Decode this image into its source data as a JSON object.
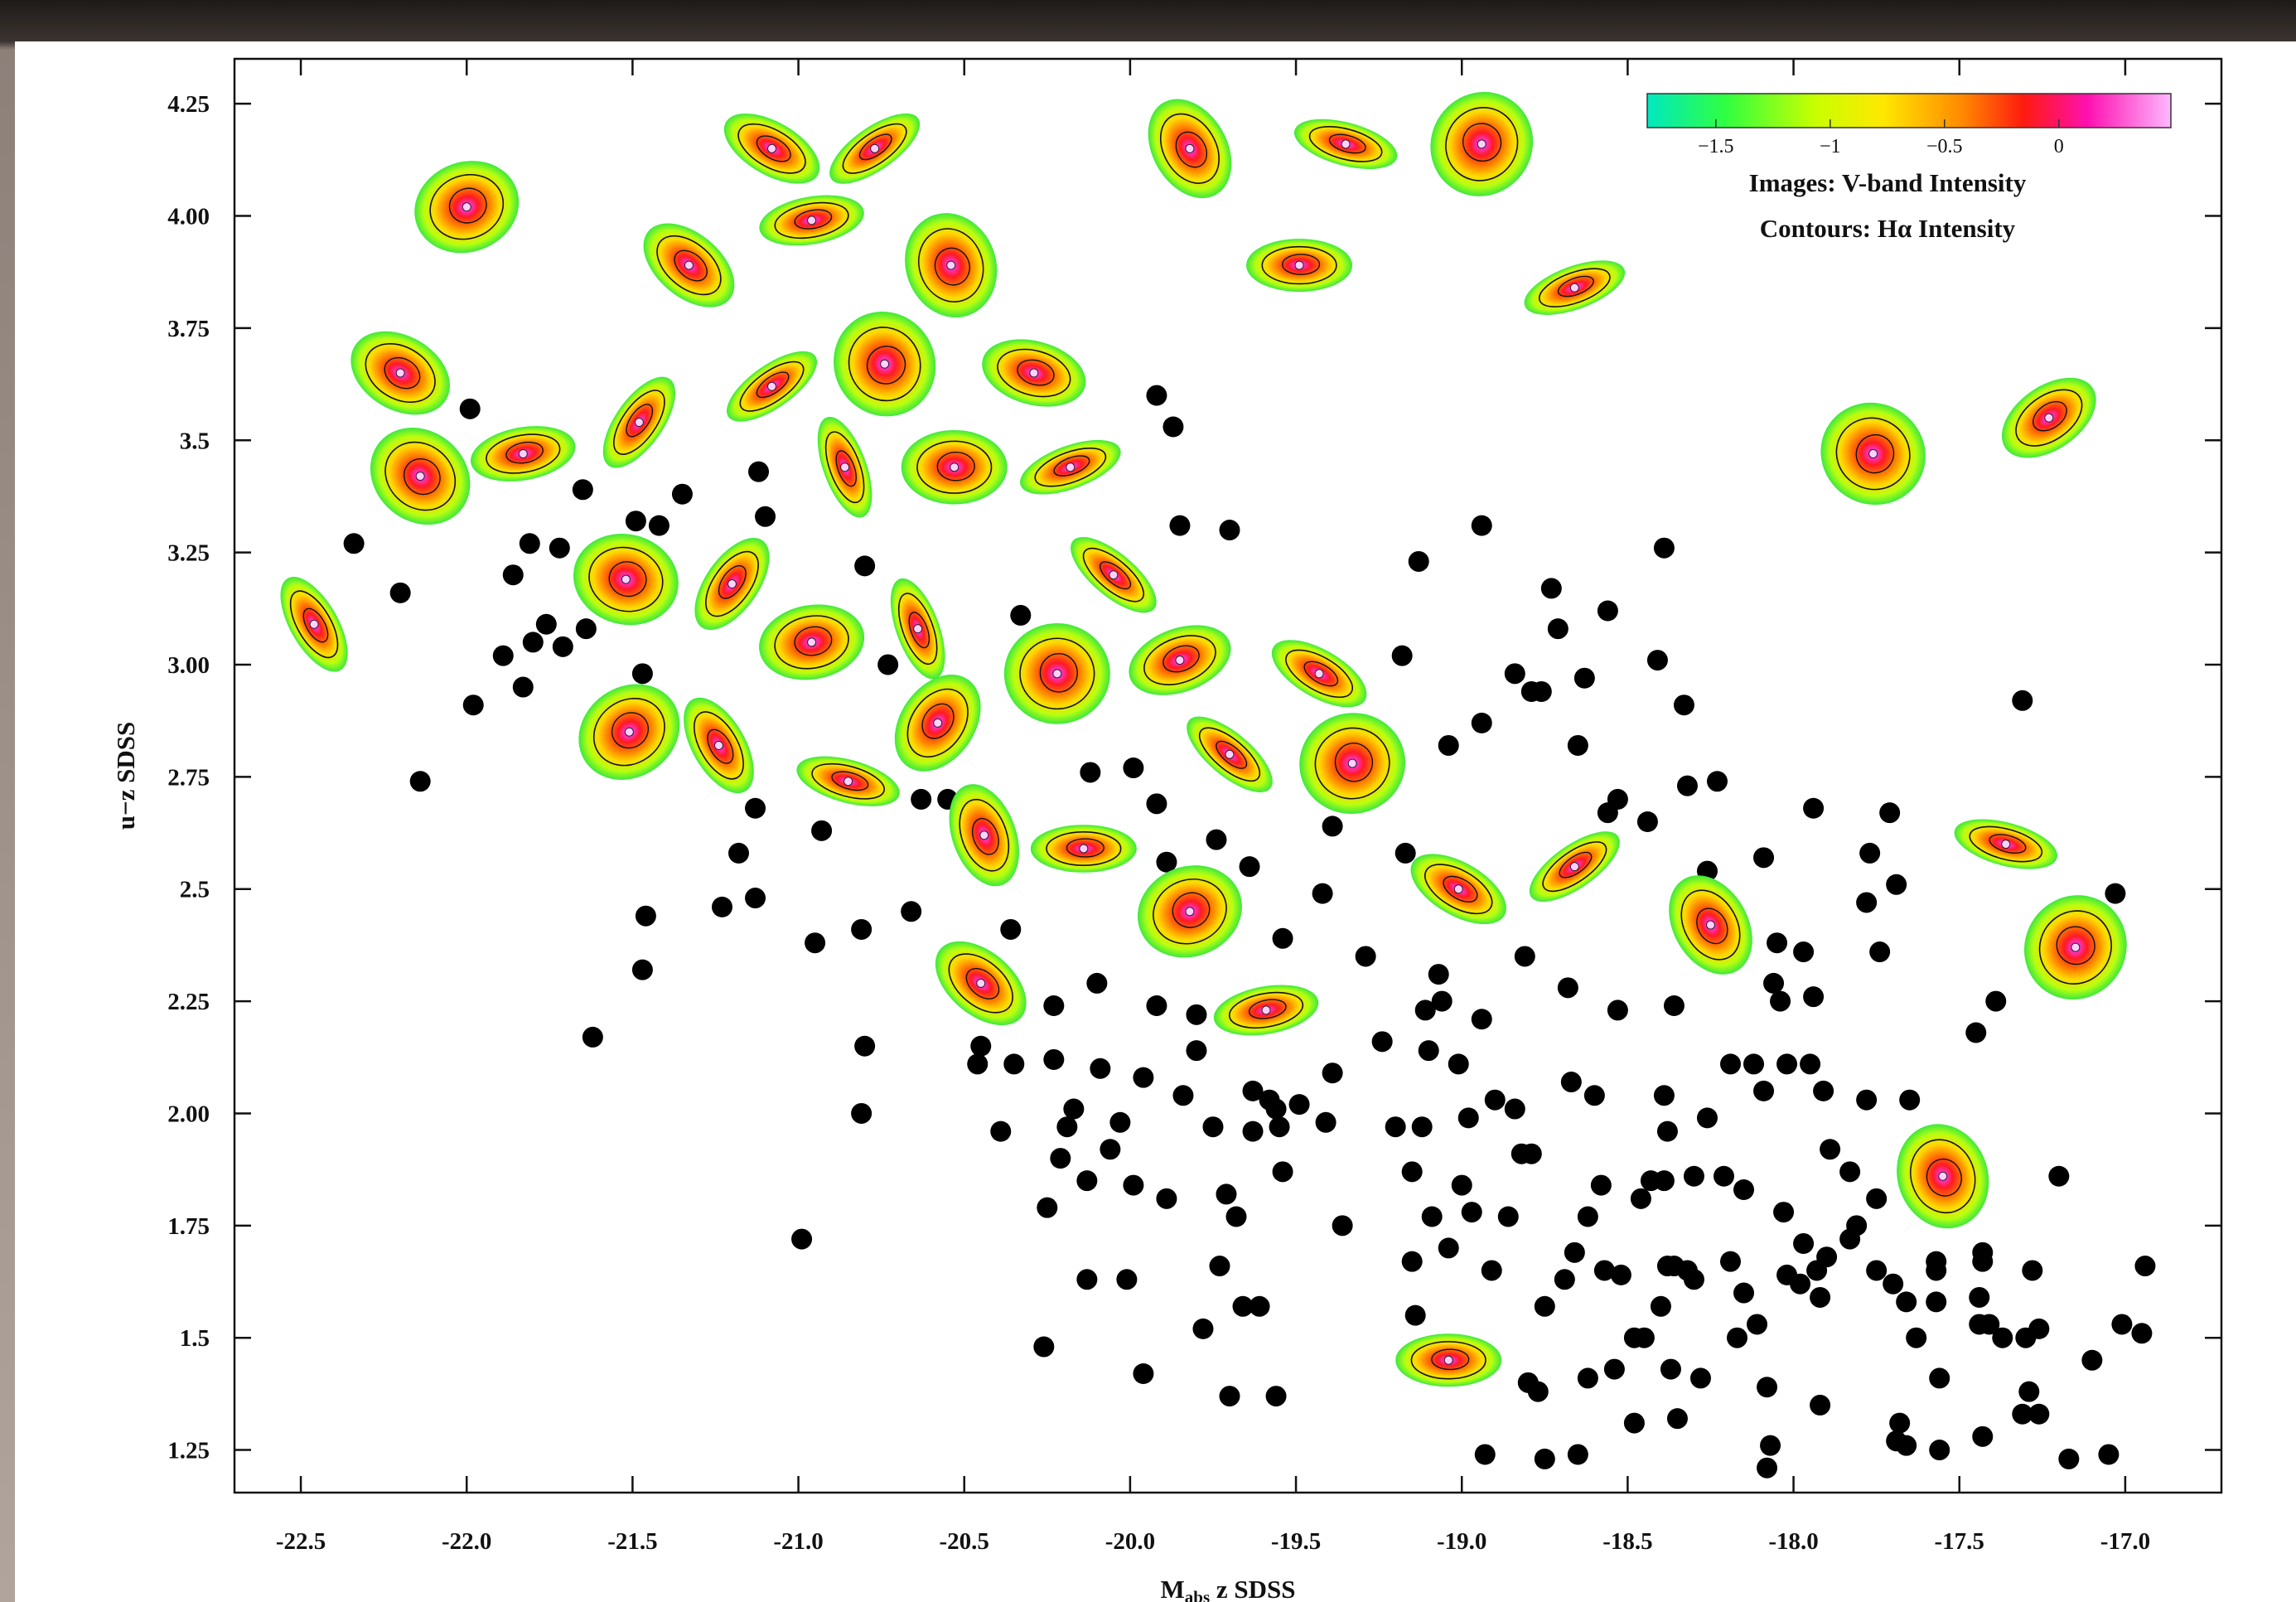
{
  "chart_data": {
    "type": "scatter",
    "xlabel": [
      "M",
      "abs",
      " z SDSS"
    ],
    "ylabel": "u−z SDSS",
    "annotations": [
      "Images: V-band Intensity",
      "Contours: Hα Intensity"
    ],
    "xlim": [
      -22.7,
      -16.71
    ],
    "ylim": [
      1.155,
      4.35
    ],
    "xticks": [
      -22.5,
      {
        "value": -22.0,
        "label": "-22.0"
      },
      -21.5,
      {
        "value": -21.0,
        "label": "-21.0"
      },
      -20.5,
      {
        "value": -20.0,
        "label": "-20.0"
      },
      -19.5,
      {
        "value": -19.0,
        "label": "-19.0"
      },
      -18.5,
      {
        "value": -18.0,
        "label": "-18.0"
      },
      -17.5,
      {
        "value": -17.0,
        "label": "-17.0"
      }
    ],
    "yticks": [
      4.25,
      {
        "value": 4.0,
        "label": "4.00"
      },
      3.75,
      3.5,
      3.25,
      {
        "value": 3.0,
        "label": "3.00"
      },
      2.75,
      2.5,
      2.25,
      {
        "value": 2.0,
        "label": "2.00"
      },
      1.75,
      1.5,
      1.25
    ],
    "colorbar": {
      "lim": [
        -1.8,
        0.49
      ],
      "ticks": [
        {
          "value": -1.5,
          "label": "−1.5"
        },
        {
          "value": -1,
          "label": "−1"
        },
        {
          "value": -0.5,
          "label": "−0.5"
        },
        0
      ]
    },
    "series": [
      {
        "marker": "dot",
        "color": "#000000",
        "x": [
          -22.34,
          -22.2,
          -22.14,
          -21.98,
          -21.99,
          -21.89,
          -21.86,
          -21.83,
          -21.81,
          -21.8,
          -21.76,
          -21.72,
          -21.71,
          -21.65,
          -21.64,
          -21.62,
          -21.49,
          -21.47,
          -21.46,
          -21.47,
          -21.42,
          -21.35,
          -21.23,
          -21.18,
          -21.13,
          -21.13,
          -21.12,
          -21.1,
          -20.99,
          -20.95,
          -20.93,
          -20.81,
          -20.81,
          -20.8,
          -20.8,
          -20.73,
          -20.66,
          -20.63,
          -20.55,
          -20.45,
          -20.46,
          -20.39,
          -20.36,
          -20.35,
          -20.33,
          -20.26,
          -20.25,
          -20.23,
          -20.23,
          -20.22,
          -20.21,
          -20.19,
          -20.17,
          -20.13,
          -20.12,
          -20.13,
          -20.1,
          -20.09,
          -20.06,
          -20.03,
          -20.01,
          -19.99,
          -19.99,
          -19.96,
          -19.96,
          -19.92,
          -19.92,
          -19.89,
          -19.92,
          -19.89,
          -19.87,
          -19.85,
          -19.84,
          -19.8,
          -19.8,
          -19.75,
          -19.78,
          -19.74,
          -19.73,
          -19.71,
          -19.7,
          -19.7,
          -19.68,
          -19.66,
          -19.64,
          -19.63,
          -19.63,
          -19.61,
          -19.58,
          -19.56,
          -19.56,
          -19.55,
          -19.54,
          -19.54,
          -19.49,
          -19.42,
          -19.41,
          -19.39,
          -19.39,
          -19.36,
          -19.29,
          -19.24,
          -19.2,
          -19.18,
          -19.17,
          -19.15,
          -19.15,
          -19.14,
          -19.13,
          -19.12,
          -19.1,
          -19.11,
          -19.09,
          -19.07,
          -19.06,
          -19.04,
          -19.04,
          -19.01,
          -19.0,
          -18.98,
          -18.97,
          -18.94,
          -18.94,
          -18.94,
          -18.93,
          -18.91,
          -18.9,
          -18.86,
          -18.84,
          -18.84,
          -18.82,
          -18.81,
          -18.8,
          -18.79,
          -18.79,
          -18.77,
          -18.76,
          -18.75,
          -18.75,
          -18.73,
          -18.71,
          -18.69,
          -18.68,
          -18.67,
          -18.66,
          -18.65,
          -18.65,
          -18.63,
          -18.62,
          -18.62,
          -18.6,
          -18.58,
          -18.57,
          -18.56,
          -18.56,
          -18.54,
          -18.53,
          -18.53,
          -18.52,
          -18.48,
          -18.48,
          -18.46,
          -18.44,
          -18.45,
          -18.43,
          -18.41,
          -18.4,
          -18.39,
          -18.39,
          -18.39,
          -18.38,
          -18.38,
          -18.37,
          -18.36,
          -18.36,
          -18.35,
          -18.33,
          -18.32,
          -18.32,
          -18.3,
          -18.3,
          -18.28,
          -18.26,
          -18.26,
          -18.23,
          -18.21,
          -18.19,
          -18.19,
          -18.17,
          -18.15,
          -18.15,
          -18.12,
          -18.11,
          -18.09,
          -18.09,
          -18.08,
          -18.07,
          -18.08,
          -18.06,
          -18.05,
          -18.04,
          -18.03,
          -18.02,
          -18.02,
          -17.98,
          -17.97,
          -17.97,
          -17.95,
          -17.94,
          -17.94,
          -17.93,
          -17.92,
          -17.92,
          -17.91,
          -17.9,
          -17.89,
          -17.83,
          -17.83,
          -17.81,
          -17.78,
          -17.78,
          -17.77,
          -17.75,
          -17.75,
          -17.74,
          -17.71,
          -17.69,
          -17.7,
          -17.69,
          -17.68,
          -17.66,
          -17.66,
          -17.65,
          -17.63,
          -17.57,
          -17.57,
          -17.57,
          -17.56,
          -17.56,
          -17.45,
          -17.44,
          -17.44,
          -17.43,
          -17.43,
          -17.43,
          -17.41,
          -17.39,
          -17.37,
          -17.31,
          -17.31,
          -17.3,
          -17.29,
          -17.28,
          -17.26,
          -17.26,
          -17.2,
          -17.17,
          -17.1,
          -17.05,
          -17.03,
          -17.01,
          -16.95,
          -16.94
        ],
        "values": [
          3.27,
          3.16,
          2.74,
          2.91,
          3.57,
          3.02,
          3.2,
          2.95,
          3.27,
          3.05,
          3.09,
          3.26,
          3.04,
          3.39,
          3.08,
          2.17,
          3.32,
          2.98,
          2.44,
          2.32,
          3.31,
          3.38,
          2.46,
          2.58,
          2.48,
          2.68,
          3.43,
          3.33,
          1.72,
          2.38,
          2.63,
          2.41,
          2.0,
          2.15,
          3.22,
          3.0,
          2.45,
          2.7,
          2.7,
          2.15,
          2.11,
          1.96,
          2.41,
          2.11,
          3.11,
          1.48,
          1.79,
          2.24,
          2.12,
          2.59,
          1.9,
          1.97,
          2.01,
          1.63,
          2.76,
          1.85,
          2.29,
          2.1,
          1.92,
          1.98,
          1.63,
          2.77,
          1.84,
          2.08,
          1.42,
          3.6,
          2.69,
          1.81,
          2.24,
          2.56,
          3.53,
          3.31,
          2.04,
          2.22,
          2.14,
          1.97,
          1.52,
          2.61,
          1.66,
          1.82,
          3.3,
          1.37,
          1.77,
          1.57,
          2.55,
          2.05,
          1.96,
          1.57,
          2.03,
          1.37,
          2.01,
          1.97,
          2.39,
          1.87,
          2.02,
          2.49,
          1.98,
          2.09,
          2.64,
          1.75,
          2.35,
          2.16,
          1.97,
          3.02,
          2.58,
          1.87,
          1.67,
          1.55,
          3.23,
          1.97,
          2.14,
          2.23,
          1.77,
          2.31,
          2.25,
          1.7,
          2.82,
          2.11,
          1.84,
          1.99,
          1.78,
          3.31,
          2.87,
          2.21,
          1.24,
          1.65,
          2.03,
          1.77,
          2.98,
          2.01,
          1.91,
          2.35,
          1.4,
          2.94,
          1.91,
          1.38,
          2.94,
          1.57,
          1.23,
          3.17,
          3.08,
          1.63,
          2.28,
          2.07,
          1.69,
          2.82,
          1.24,
          2.97,
          1.77,
          1.41,
          2.04,
          1.84,
          1.65,
          3.12,
          2.67,
          1.43,
          2.7,
          2.23,
          1.64,
          1.5,
          1.31,
          1.81,
          2.65,
          1.5,
          1.85,
          3.01,
          1.57,
          1.85,
          3.26,
          2.04,
          1.66,
          1.96,
          1.43,
          2.24,
          1.66,
          1.32,
          2.91,
          1.65,
          2.73,
          1.63,
          1.86,
          1.41,
          1.99,
          2.54,
          2.74,
          1.86,
          2.11,
          1.67,
          1.5,
          1.83,
          1.6,
          2.11,
          1.53,
          2.57,
          2.05,
          1.39,
          1.26,
          1.21,
          2.29,
          2.38,
          2.25,
          1.78,
          2.11,
          1.64,
          1.62,
          1.71,
          2.36,
          2.11,
          2.26,
          2.68,
          1.65,
          1.59,
          1.35,
          2.05,
          1.68,
          1.92,
          1.87,
          1.72,
          1.75,
          2.47,
          2.03,
          2.58,
          1.81,
          1.65,
          2.36,
          2.67,
          2.51,
          1.62,
          1.27,
          1.31,
          1.26,
          1.58,
          2.03,
          1.5,
          1.67,
          1.65,
          1.58,
          1.25,
          1.41,
          2.18,
          1.53,
          1.59,
          1.67,
          1.69,
          1.28,
          1.53,
          2.25,
          1.5,
          2.92,
          1.33,
          1.5,
          1.38,
          1.65,
          1.52,
          1.33,
          1.86,
          1.23,
          1.45,
          1.24,
          2.49,
          1.53,
          1.51,
          1.66
        ]
      },
      {
        "marker": "galaxy-image",
        "x": [
          -22.0,
          -21.08,
          -20.77,
          -19.82,
          -19.35,
          -18.94,
          -21.33,
          -20.96,
          -20.54,
          -19.49,
          -18.66,
          -22.2,
          -21.08,
          -20.74,
          -20.29,
          -21.48,
          -22.14,
          -21.83,
          -20.86,
          -20.53,
          -20.18,
          -17.76,
          -17.23,
          -22.46,
          -21.52,
          -21.2,
          -20.05,
          -20.96,
          -20.64,
          -20.22,
          -19.85,
          -19.43,
          -21.51,
          -21.24,
          -20.85,
          -20.58,
          -19.7,
          -19.33,
          -20.44,
          -20.14,
          -19.82,
          -19.01,
          -18.66,
          -18.25,
          -17.36,
          -17.15,
          -20.45,
          -19.59,
          -17.55,
          -19.04
        ],
        "values": [
          4.02,
          4.15,
          4.15,
          4.15,
          4.16,
          4.16,
          3.89,
          3.99,
          3.89,
          3.89,
          3.84,
          3.65,
          3.62,
          3.67,
          3.65,
          3.54,
          3.42,
          3.47,
          3.44,
          3.44,
          3.44,
          3.47,
          3.55,
          3.09,
          3.19,
          3.18,
          3.2,
          3.05,
          3.08,
          2.98,
          3.01,
          2.98,
          2.85,
          2.82,
          2.74,
          2.87,
          2.8,
          2.78,
          2.62,
          2.59,
          2.45,
          2.5,
          2.55,
          2.42,
          2.6,
          2.37,
          2.29,
          2.23,
          1.86,
          1.45
        ]
      }
    ]
  }
}
